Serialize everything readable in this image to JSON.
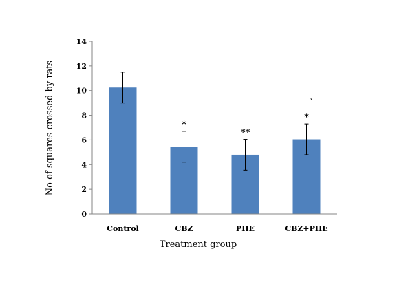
{
  "chart_data": {
    "type": "bar",
    "categories": [
      "Control",
      "CBZ",
      "PHE",
      "CBZ+PHE"
    ],
    "values": [
      10.25,
      5.45,
      4.8,
      6.05
    ],
    "error": [
      1.25,
      1.25,
      1.25,
      1.25
    ],
    "annotations": [
      "",
      "*",
      "**",
      "*"
    ],
    "extra_marks": [
      {
        "category": "CBZ+PHE",
        "text": "`"
      }
    ],
    "xlabel": "Treatment group",
    "ylabel": "No of squares crossed by rats",
    "ylim": [
      0,
      14
    ],
    "yticks": [
      0,
      2,
      4,
      6,
      8,
      10,
      12,
      14
    ],
    "grid": false,
    "legend": "none",
    "colors": {
      "bar": "#4f81bd",
      "axis": "#868686",
      "error": "#000000"
    }
  }
}
